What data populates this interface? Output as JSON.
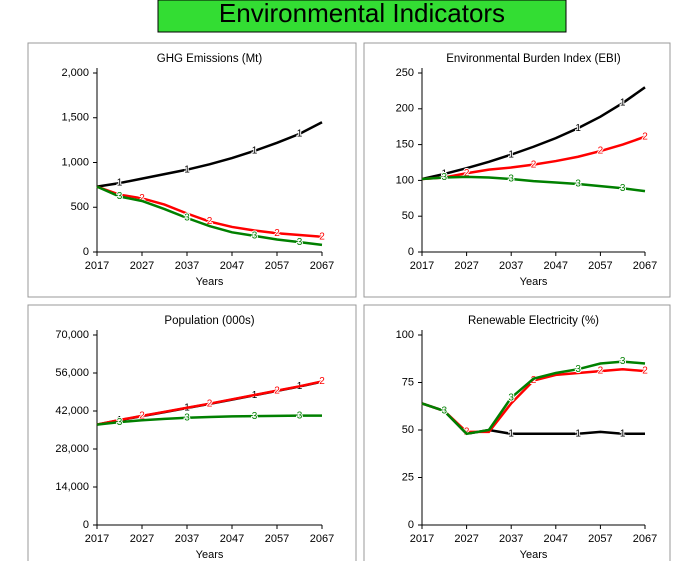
{
  "title": "Environmental Indicators",
  "chart_data": [
    {
      "type": "line",
      "title": "GHG Emissions (Mt)",
      "x_label": "Years",
      "x": [
        2017,
        2022,
        2027,
        2032,
        2037,
        2042,
        2047,
        2052,
        2057,
        2062,
        2067
      ],
      "xlim": [
        2017,
        2067
      ],
      "xticks": [
        2017,
        2027,
        2037,
        2047,
        2057,
        2067
      ],
      "ylim": [
        0,
        2000
      ],
      "yticks": [
        0,
        500,
        {
          "value": 1000,
          "label": "1,000"
        },
        {
          "value": 1500,
          "label": "1,500"
        },
        {
          "value": 2000,
          "label": "2,000"
        }
      ],
      "series": [
        {
          "name": "1",
          "color": "#000000",
          "values": [
            730,
            770,
            820,
            870,
            920,
            980,
            1050,
            1130,
            1220,
            1320,
            1450
          ]
        },
        {
          "name": "2",
          "color": "#ff0000",
          "values": [
            730,
            640,
            600,
            530,
            430,
            340,
            280,
            240,
            210,
            190,
            170
          ]
        },
        {
          "name": "3",
          "color": "#008000",
          "values": [
            730,
            620,
            570,
            480,
            380,
            290,
            220,
            180,
            140,
            110,
            80
          ]
        }
      ]
    },
    {
      "type": "line",
      "title": "Environmental Burden Index (EBI)",
      "x_label": "Years",
      "x": [
        2017,
        2022,
        2027,
        2032,
        2037,
        2042,
        2047,
        2052,
        2057,
        2062,
        2067
      ],
      "xlim": [
        2017,
        2067
      ],
      "xticks": [
        2017,
        2027,
        2037,
        2047,
        2057,
        2067
      ],
      "ylim": [
        0,
        250
      ],
      "yticks": [
        0,
        50,
        100,
        150,
        200,
        250
      ],
      "series": [
        {
          "name": "1",
          "color": "#000000",
          "values": [
            102,
            109,
            117,
            126,
            136,
            147,
            159,
            173,
            189,
            208,
            230
          ]
        },
        {
          "name": "2",
          "color": "#ff0000",
          "values": [
            102,
            104,
            110,
            115,
            118,
            122,
            127,
            133,
            141,
            150,
            161
          ]
        },
        {
          "name": "3",
          "color": "#008000",
          "values": [
            102,
            104,
            105,
            104,
            102,
            99,
            97,
            95,
            92,
            89,
            85
          ]
        }
      ]
    },
    {
      "type": "line",
      "title": "Population (000s)",
      "x_label": "Years",
      "x": [
        2017,
        2022,
        2027,
        2032,
        2037,
        2042,
        2047,
        2052,
        2057,
        2062,
        2067
      ],
      "xlim": [
        2017,
        2067
      ],
      "xticks": [
        2017,
        2027,
        2037,
        2047,
        2057,
        2067
      ],
      "ylim": [
        0,
        70000
      ],
      "yticks": [
        0,
        {
          "value": 14000,
          "label": "14,000"
        },
        {
          "value": 28000,
          "label": "28,000"
        },
        {
          "value": 42000,
          "label": "42,000"
        },
        {
          "value": 56000,
          "label": "56,000"
        },
        {
          "value": 70000,
          "label": "70,000"
        }
      ],
      "series": [
        {
          "name": "1",
          "color": "#000000",
          "values": [
            37000,
            38600,
            40100,
            41600,
            43100,
            44600,
            46200,
            47800,
            49400,
            51000,
            52800
          ]
        },
        {
          "name": "2",
          "color": "#ff0000",
          "values": [
            37000,
            38700,
            40200,
            41700,
            43200,
            44700,
            46300,
            47900,
            49500,
            51100,
            52900
          ]
        },
        {
          "name": "3",
          "color": "#008000",
          "values": [
            37000,
            37900,
            38600,
            39100,
            39500,
            39800,
            40000,
            40100,
            40200,
            40300,
            40300
          ]
        }
      ]
    },
    {
      "type": "line",
      "title": "Renewable Electricity (%)",
      "x_label": "Years",
      "x": [
        2017,
        2022,
        2027,
        2032,
        2037,
        2042,
        2047,
        2052,
        2057,
        2062,
        2067
      ],
      "xlim": [
        2017,
        2067
      ],
      "xticks": [
        2017,
        2027,
        2037,
        2047,
        2057,
        2067
      ],
      "ylim": [
        0,
        100
      ],
      "yticks": [
        0,
        25,
        50,
        75,
        100
      ],
      "series": [
        {
          "name": "1",
          "color": "#000000",
          "values": [
            64,
            60,
            48,
            50,
            48,
            48,
            48,
            48,
            49,
            48,
            48
          ]
        },
        {
          "name": "2",
          "color": "#ff0000",
          "values": [
            64,
            60,
            49,
            49,
            64,
            76,
            79,
            80,
            81,
            82,
            81
          ]
        },
        {
          "name": "3",
          "color": "#008000",
          "values": [
            64,
            60,
            48,
            50,
            67,
            77,
            80,
            82,
            85,
            86,
            85
          ]
        }
      ]
    }
  ]
}
